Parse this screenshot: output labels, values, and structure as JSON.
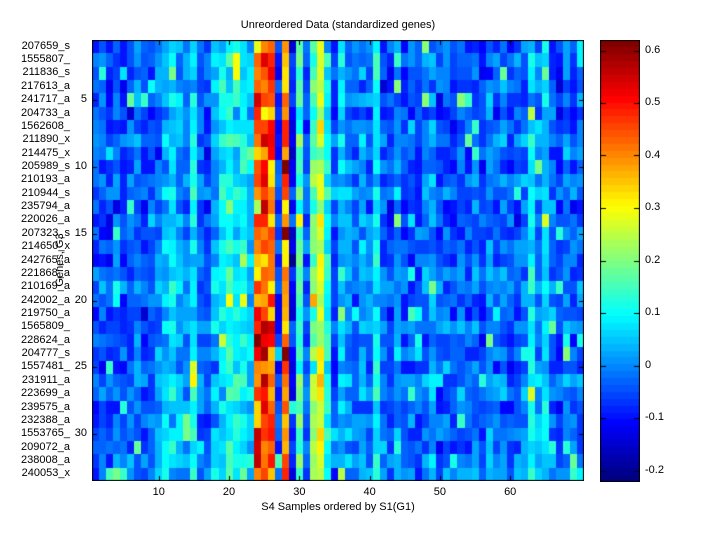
{
  "title": "Unreordered Data (standardized genes)",
  "axes": {
    "xlabel": "S4 Samples ordered by S1(G1)",
    "ylabel": "Genes, G3"
  },
  "chart_data": {
    "type": "heatmap",
    "title": "Unreordered Data (standardized genes)",
    "xlabel": "S4 Samples ordered by S1(G1)",
    "ylabel": "Genes, G3",
    "n_rows": 33,
    "n_cols": 70,
    "row_labels": [
      "207659_s",
      "1555807_",
      "211836_s",
      "217613_a",
      "241717_a",
      "204733_a",
      "1562608_",
      "211890_x",
      "214475_x",
      "205989_s",
      "210193_a",
      "210944_s",
      "235794_a",
      "220026_a",
      "207323_s",
      "214650_x",
      "242765_a",
      "221868_a",
      "210169_a",
      "242002_a",
      "219750_a",
      "1565809_",
      "228624_a",
      "204777_s",
      "1557481_",
      "231911_a",
      "223699_a",
      "239575_a",
      "232388_a",
      "1553765_",
      "209072_a",
      "238008_a",
      "240053_x"
    ],
    "x_ticks": [
      10,
      20,
      30,
      40,
      50,
      60
    ],
    "y_ticks": [
      5,
      10,
      15,
      20,
      25,
      30
    ],
    "colormap": "jet",
    "value_min": -0.22,
    "value_max": 0.62,
    "colorbar_ticks": [
      0.6,
      0.5,
      0.4,
      0.3,
      0.2,
      0.1,
      0,
      -0.1,
      -0.2
    ],
    "frame_color": "#000000",
    "background_color": "#ffffff",
    "column_means": [
      -0.05,
      -0.04,
      -0.07,
      -0.03,
      -0.06,
      -0.04,
      -0.02,
      -0.06,
      -0.04,
      -0.01,
      0.04,
      0.07,
      0.02,
      -0.01,
      0.08,
      -0.03,
      -0.05,
      0.04,
      0.08,
      0.1,
      0.08,
      0.1,
      0.05,
      0.42,
      0.45,
      0.44,
      -0.08,
      0.42,
      -0.1,
      0.16,
      -0.05,
      0.18,
      0.28,
      0.1,
      -0.04,
      0.06,
      0.0,
      -0.04,
      0.02,
      -0.02,
      0.1,
      -0.04,
      -0.06,
      -0.01,
      -0.05,
      -0.03,
      -0.06,
      -0.02,
      0.01,
      -0.05,
      -0.03,
      -0.06,
      -0.02,
      -0.05,
      -0.03,
      -0.06,
      0.0,
      -0.04,
      -0.02,
      -0.06,
      -0.03,
      -0.01,
      0.08,
      0.0,
      0.07,
      -0.04,
      -0.06,
      -0.02,
      -0.05,
      -0.03
    ],
    "row_offsets": [
      0,
      0.01,
      -0.01,
      0,
      0.01,
      -0.02,
      0,
      0.02,
      -0.01,
      0,
      0.01,
      0.02,
      -0.02,
      0,
      -0.01,
      0.01,
      0,
      0.02,
      0.03,
      0,
      -0.01,
      0.02,
      0,
      0.01,
      -0.01,
      0.03,
      0.02,
      0,
      0.01,
      0.02,
      0.01,
      0.03,
      0.02
    ],
    "noise_amplitude": 0.06
  }
}
